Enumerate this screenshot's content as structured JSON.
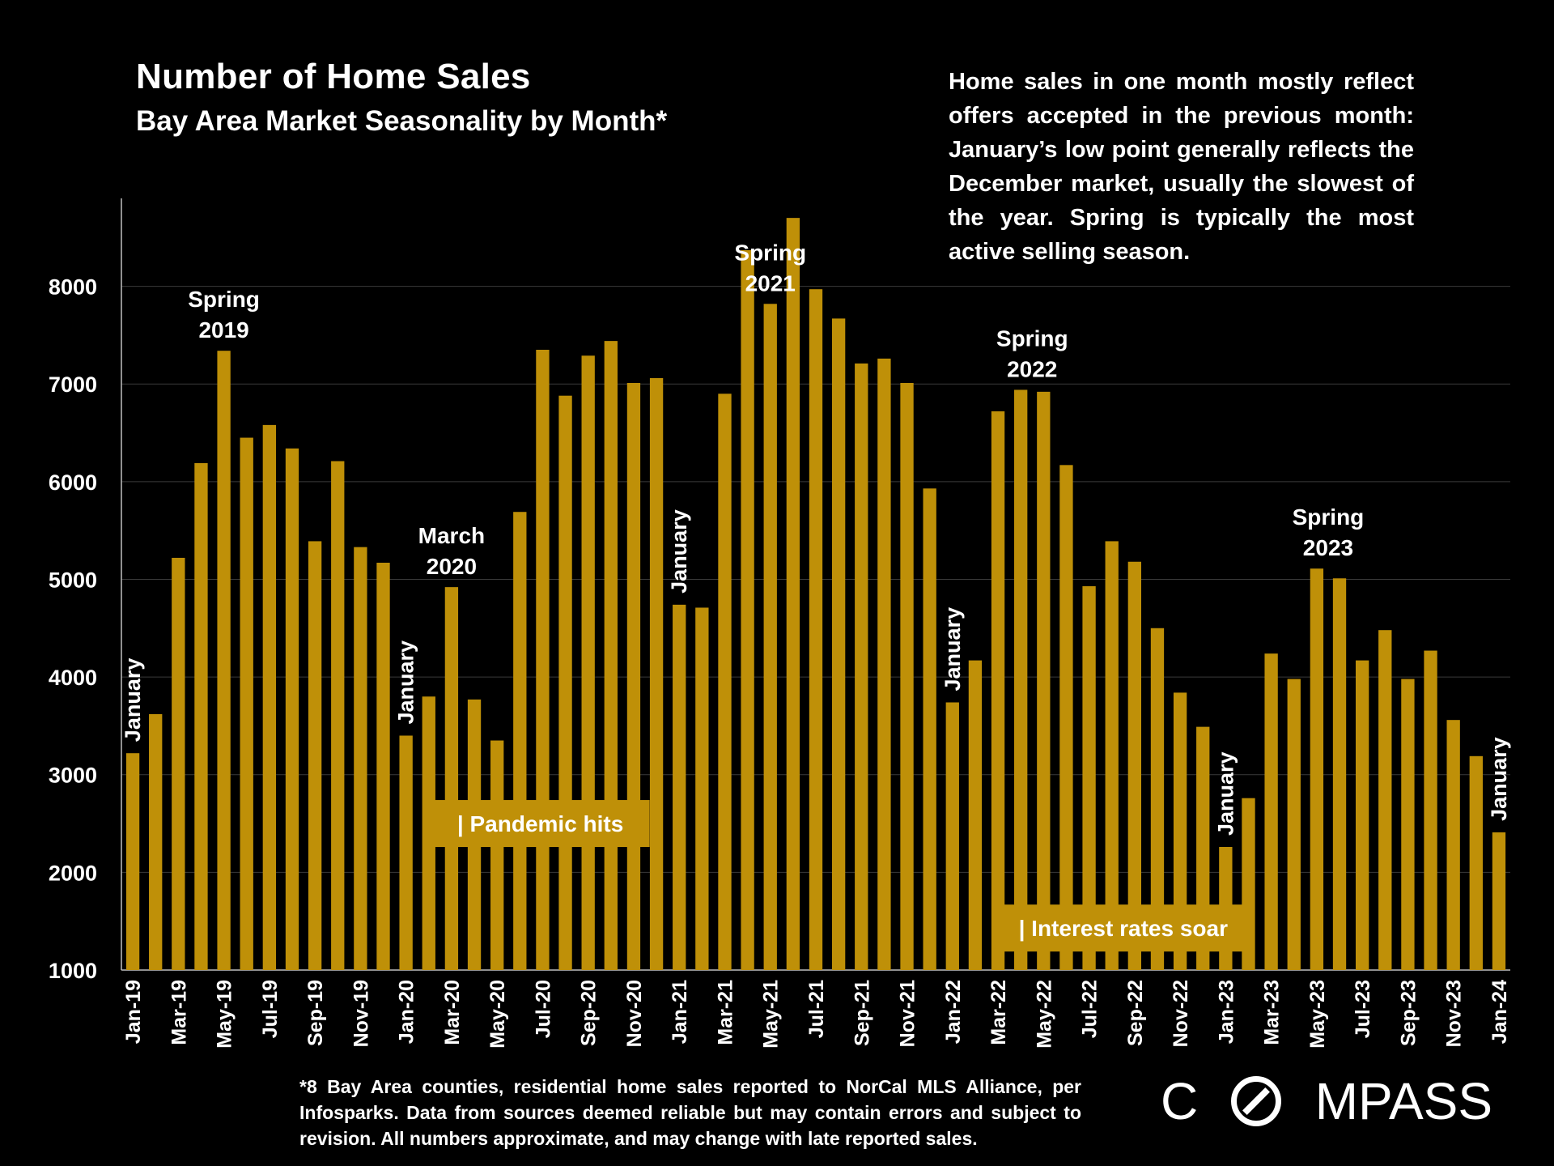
{
  "header": {
    "title": "Number of Home Sales",
    "subtitle": "Bay Area Market Seasonality by Month*"
  },
  "note": "Home sales in one month mostly reflect offers accepted in the previous month: January’s low point generally reflects the December market, usually the slowest of the year. Spring is typically the most active selling season.",
  "footnote": "*8 Bay Area counties, residential home sales reported to NorCal MLS Alliance, per Infosparks. Data from sources deemed reliable but may contain errors and subject to revision. All numbers approximate, and may change with late reported sales.",
  "logo": {
    "left": "C",
    "right": "MPASS",
    "icon": "compass-o-icon"
  },
  "colors": {
    "background": "#000000",
    "bar": "#BF9008",
    "text": "#FFFFFF",
    "gridline": "#3A3A3A",
    "callout_bg": "#BF9008"
  },
  "chart_data": {
    "type": "bar",
    "categories": [
      "Jan-19",
      "Feb-19",
      "Mar-19",
      "Apr-19",
      "May-19",
      "Jun-19",
      "Jul-19",
      "Aug-19",
      "Sep-19",
      "Oct-19",
      "Nov-19",
      "Dec-19",
      "Jan-20",
      "Feb-20",
      "Mar-20",
      "Apr-20",
      "May-20",
      "Jun-20",
      "Jul-20",
      "Aug-20",
      "Sep-20",
      "Oct-20",
      "Nov-20",
      "Dec-20",
      "Jan-21",
      "Feb-21",
      "Mar-21",
      "Apr-21",
      "May-21",
      "Jun-21",
      "Jul-21",
      "Aug-21",
      "Sep-21",
      "Oct-21",
      "Nov-21",
      "Dec-21",
      "Jan-22",
      "Feb-22",
      "Mar-22",
      "Apr-22",
      "May-22",
      "Jun-22",
      "Jul-22",
      "Aug-22",
      "Sep-22",
      "Oct-22",
      "Nov-22",
      "Dec-22",
      "Jan-23",
      "Feb-23",
      "Mar-23",
      "Apr-23",
      "May-23",
      "Jun-23",
      "Jul-23",
      "Aug-23",
      "Sep-23",
      "Oct-23",
      "Nov-23",
      "Dec-23",
      "Jan-24"
    ],
    "tick_labels": [
      "Jan-19",
      "Mar-19",
      "May-19",
      "Jul-19",
      "Sep-19",
      "Nov-19",
      "Jan-20",
      "Mar-20",
      "May-20",
      "Jul-20",
      "Sep-20",
      "Nov-20",
      "Jan-21",
      "Mar-21",
      "May-21",
      "Jul-21",
      "Sep-21",
      "Nov-21",
      "Jan-22",
      "Mar-22",
      "May-22",
      "Jul-22",
      "Sep-22",
      "Nov-22",
      "Jan-23",
      "Mar-23",
      "May-23",
      "Jul-23",
      "Sep-23",
      "Nov-23",
      "Jan-24"
    ],
    "values": [
      3220,
      3620,
      5220,
      6190,
      7340,
      6450,
      6580,
      6340,
      5390,
      6210,
      5330,
      5170,
      3400,
      3800,
      4920,
      3770,
      3350,
      5690,
      7350,
      6880,
      7290,
      7440,
      7010,
      7060,
      4740,
      4710,
      6900,
      8370,
      7820,
      8700,
      7970,
      7670,
      7210,
      7260,
      7010,
      5930,
      3740,
      4170,
      6720,
      6940,
      6920,
      6170,
      4930,
      5390,
      5180,
      4500,
      3840,
      3490,
      2260,
      2760,
      4240,
      3980,
      5110,
      5010,
      4170,
      4480,
      3980,
      4270,
      3560,
      3190,
      2410
    ],
    "ylim": [
      1000,
      8900
    ],
    "yticks": [
      1000,
      2000,
      3000,
      4000,
      5000,
      6000,
      7000,
      8000
    ],
    "grid": true,
    "annotations": [
      {
        "text": "January",
        "index": 0,
        "orientation": "vertical"
      },
      {
        "text": "January",
        "index": 12,
        "orientation": "vertical"
      },
      {
        "text": "January",
        "index": 24,
        "orientation": "vertical"
      },
      {
        "text": "January",
        "index": 36,
        "orientation": "vertical"
      },
      {
        "text": "January",
        "index": 48,
        "orientation": "vertical"
      },
      {
        "text": "January",
        "index": 60,
        "orientation": "vertical"
      },
      {
        "lines": [
          "Spring",
          "2019"
        ],
        "index": 4
      },
      {
        "lines": [
          "March",
          "2020"
        ],
        "index": 14
      },
      {
        "lines": [
          "Spring",
          "2021"
        ],
        "index": 28
      },
      {
        "lines": [
          "Spring",
          "2022"
        ],
        "index": 39.5
      },
      {
        "lines": [
          "Spring",
          "2023"
        ],
        "index": 52.5
      }
    ],
    "callouts": [
      {
        "text": "| Pandemic hits",
        "index_from": 13.6,
        "index_to": 23.2,
        "y_value": 2500
      },
      {
        "text": "| Interest rates soar",
        "index_from": 38.6,
        "index_to": 49.4,
        "y_value": 1430
      }
    ]
  }
}
